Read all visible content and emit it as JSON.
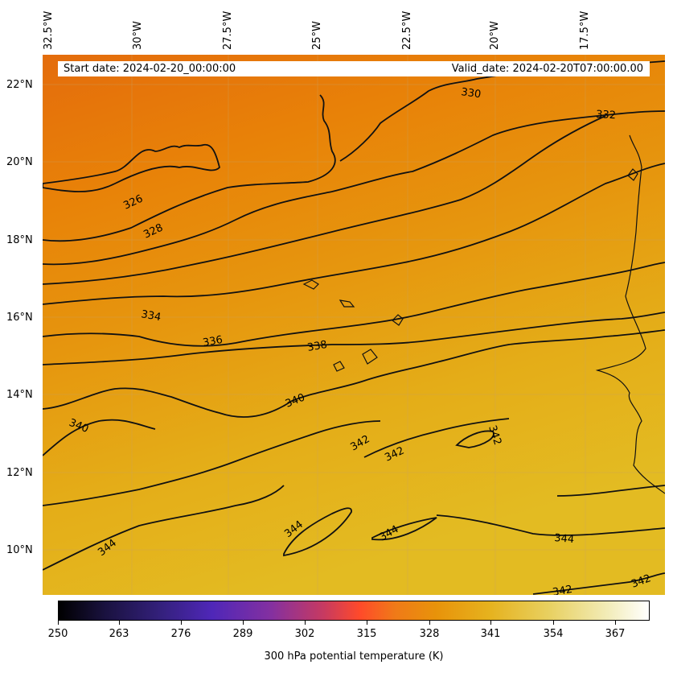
{
  "map": {
    "start_date": "Start date: 2024-02-20_00:00:00",
    "valid_date": "Valid_date: 2024-02-20T07:00:00.00",
    "lon_labels": [
      "32.5°W",
      "30°W",
      "27.5°W",
      "25°W",
      "22.5°W",
      "20°W",
      "17.5°W"
    ],
    "lat_labels": [
      "22°N",
      "20°N",
      "18°N",
      "16°N",
      "14°N",
      "12°N",
      "10°N"
    ],
    "contour_labels": [
      "326",
      "328",
      "330",
      "332",
      "334",
      "336",
      "338",
      "340",
      "340",
      "342",
      "342",
      "342",
      "344",
      "344",
      "344",
      "344",
      "342",
      "342"
    ],
    "field_colors": [
      "#e46c0c",
      "#e88208",
      "#e6940e",
      "#e4a815",
      "#e2b71f"
    ]
  },
  "colorbar": {
    "ticks": [
      "250",
      "263",
      "276",
      "289",
      "302",
      "315",
      "328",
      "341",
      "354",
      "367"
    ],
    "label": "300 hPa potential temperature (K)"
  }
}
